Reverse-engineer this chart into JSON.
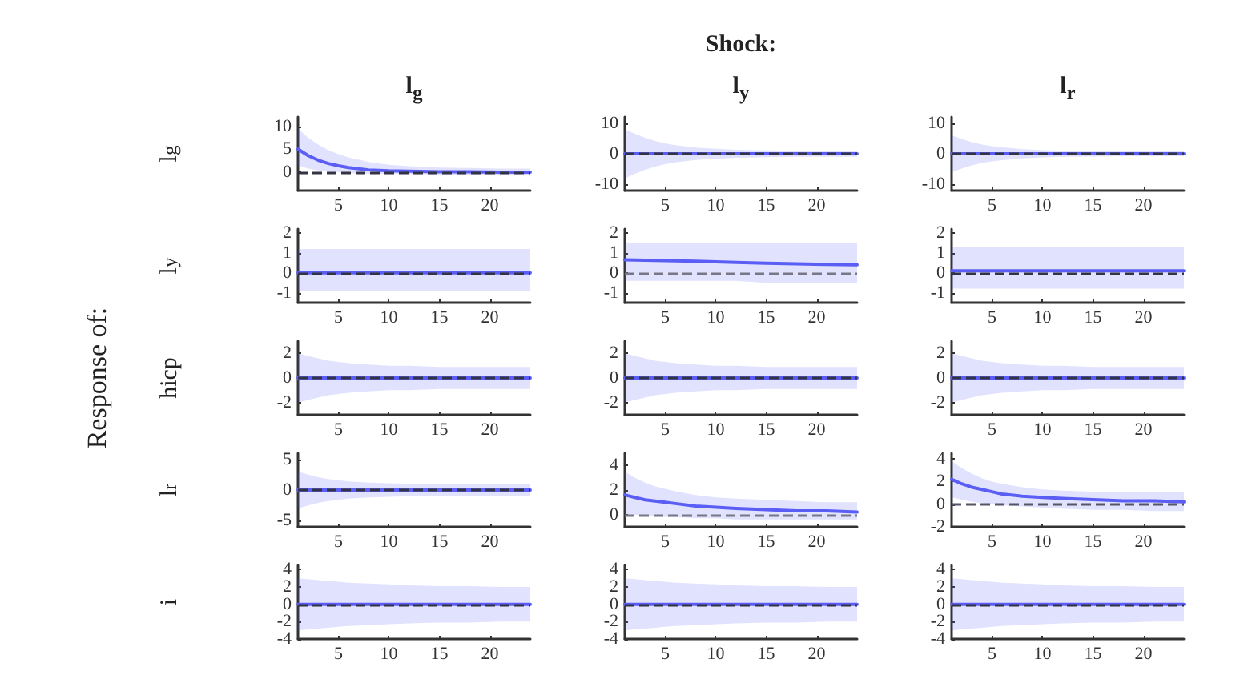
{
  "chart_data": [
    {
      "type": "line",
      "title": "l$_{g}$",
      "ylabel": "l$_{g}$",
      "x": [
        1,
        2,
        3,
        4,
        5,
        6,
        8,
        10,
        12,
        15,
        18,
        21,
        24
      ],
      "xlim": [
        1,
        24
      ],
      "xticks": [
        5,
        10,
        15,
        20
      ],
      "ylim": [
        -4,
        12
      ],
      "yticks": [
        0,
        5,
        10
      ],
      "grid": false,
      "ref_lines": [
        {
          "axis": "y",
          "value": 0,
          "color": "#333344",
          "line_style": "dashed"
        }
      ],
      "series": [
        {
          "color": "#5b5ef5",
          "values": [
            5,
            3.6,
            2.6,
            1.9,
            1.4,
            1,
            0.5,
            0.3,
            0.2,
            0.1,
            0.1,
            0,
            0
          ],
          "upper": [
            9.5,
            7.5,
            6,
            4.8,
            3.9,
            3.2,
            2.2,
            1.6,
            1.3,
            1,
            0.9,
            0.8,
            0.8
          ],
          "lower": [
            1.5,
            0.8,
            0.4,
            0.1,
            0,
            -0.2,
            -0.3,
            -0.4,
            -0.4,
            -0.5,
            -0.5,
            -0.5,
            -0.5
          ]
        }
      ]
    },
    {
      "type": "line",
      "title": "l$_{y}$",
      "annotations": [
        "Shock:"
      ],
      "x": [
        1,
        2,
        3,
        4,
        5,
        6,
        8,
        10,
        12,
        15,
        18,
        21,
        24
      ],
      "xlim": [
        1,
        24
      ],
      "xticks": [
        5,
        10,
        15,
        20
      ],
      "ylim": [
        -12,
        12
      ],
      "yticks": [
        -10,
        0,
        10
      ],
      "grid": false,
      "ref_lines": [
        {
          "axis": "y",
          "value": 0,
          "color": "#333344",
          "line_style": "dashed"
        }
      ],
      "series": [
        {
          "color": "#5b5ef5",
          "values": [
            0,
            0,
            0,
            0,
            0,
            0,
            0,
            0,
            0,
            0,
            0,
            0,
            0
          ],
          "upper": [
            8,
            6.5,
            5.2,
            4.2,
            3.4,
            2.8,
            2,
            1.6,
            1.3,
            1.1,
            1,
            1,
            1
          ],
          "lower": [
            -8,
            -6.5,
            -5.2,
            -4.2,
            -3.4,
            -2.8,
            -2,
            -1.6,
            -1.3,
            -1.1,
            -1,
            -1,
            -1
          ]
        }
      ]
    },
    {
      "type": "line",
      "title": "l$_{r}$",
      "x": [
        1,
        2,
        3,
        4,
        5,
        6,
        8,
        10,
        12,
        15,
        18,
        21,
        24
      ],
      "xlim": [
        1,
        24
      ],
      "xticks": [
        5,
        10,
        15,
        20
      ],
      "ylim": [
        -12,
        12
      ],
      "yticks": [
        -10,
        0,
        10
      ],
      "grid": false,
      "ref_lines": [
        {
          "axis": "y",
          "value": 0,
          "color": "#333344",
          "line_style": "dashed"
        }
      ],
      "series": [
        {
          "color": "#5b5ef5",
          "values": [
            0,
            0,
            0,
            0,
            0,
            0,
            0,
            0,
            0,
            0,
            0,
            0,
            0
          ],
          "upper": [
            6,
            4.8,
            3.8,
            3,
            2.5,
            2.1,
            1.5,
            1.2,
            1,
            0.9,
            0.8,
            0.8,
            0.8
          ],
          "lower": [
            -6,
            -4.8,
            -3.8,
            -3,
            -2.5,
            -2.1,
            -1.5,
            -1.2,
            -1,
            -0.9,
            -0.8,
            -0.8,
            -0.8
          ]
        }
      ]
    },
    {
      "type": "line",
      "ylabel": "l$_{y}$",
      "x": [
        1,
        2,
        3,
        4,
        5,
        6,
        8,
        10,
        12,
        15,
        18,
        21,
        24
      ],
      "xlim": [
        1,
        24
      ],
      "xticks": [
        5,
        10,
        15,
        20
      ],
      "ylim": [
        -1.5,
        2.2
      ],
      "yticks": [
        -1,
        0,
        1,
        2
      ],
      "grid": false,
      "ref_lines": [
        {
          "axis": "y",
          "value": 0,
          "color": "#333344",
          "line_style": "dashed"
        }
      ],
      "series": [
        {
          "color": "#5b5ef5",
          "values": [
            0,
            0,
            0,
            0,
            0,
            0,
            0,
            0,
            0,
            0,
            0,
            0,
            0
          ],
          "upper": [
            1.2,
            1.2,
            1.2,
            1.2,
            1.2,
            1.2,
            1.2,
            1.2,
            1.2,
            1.2,
            1.2,
            1.2,
            1.2
          ],
          "lower": [
            -0.9,
            -0.9,
            -0.9,
            -0.9,
            -0.9,
            -0.9,
            -0.9,
            -0.9,
            -0.9,
            -0.9,
            -0.9,
            -0.9,
            -0.9
          ]
        }
      ]
    },
    {
      "type": "line",
      "x": [
        1,
        2,
        3,
        4,
        5,
        6,
        8,
        10,
        12,
        15,
        18,
        21,
        24
      ],
      "xlim": [
        1,
        24
      ],
      "xticks": [
        5,
        10,
        15,
        20
      ],
      "ylim": [
        -1.5,
        2.2
      ],
      "yticks": [
        -1,
        0,
        1,
        2
      ],
      "grid": false,
      "ref_lines": [
        {
          "axis": "y",
          "value": 0,
          "color": "#777788",
          "line_style": "dashed"
        }
      ],
      "series": [
        {
          "color": "#5b5ef5",
          "values": [
            0.65,
            0.64,
            0.63,
            0.62,
            0.61,
            0.6,
            0.58,
            0.55,
            0.52,
            0.48,
            0.45,
            0.42,
            0.4
          ],
          "upper": [
            1.5,
            1.5,
            1.5,
            1.5,
            1.5,
            1.5,
            1.5,
            1.5,
            1.5,
            1.5,
            1.5,
            1.5,
            1.5
          ],
          "lower": [
            -0.4,
            -0.4,
            -0.4,
            -0.4,
            -0.4,
            -0.4,
            -0.4,
            -0.4,
            -0.4,
            -0.5,
            -0.5,
            -0.5,
            -0.5
          ]
        }
      ]
    },
    {
      "type": "line",
      "x": [
        1,
        2,
        3,
        4,
        5,
        6,
        8,
        10,
        12,
        15,
        18,
        21,
        24
      ],
      "xlim": [
        1,
        24
      ],
      "xticks": [
        5,
        10,
        15,
        20
      ],
      "ylim": [
        -1.5,
        2.2
      ],
      "yticks": [
        -1,
        0,
        1,
        2
      ],
      "grid": false,
      "ref_lines": [
        {
          "axis": "y",
          "value": 0,
          "color": "#333344",
          "line_style": "dashed"
        }
      ],
      "series": [
        {
          "color": "#5b5ef5",
          "values": [
            0.1,
            0.1,
            0.1,
            0.1,
            0.1,
            0.1,
            0.1,
            0.1,
            0.1,
            0.1,
            0.1,
            0.1,
            0.1
          ],
          "upper": [
            1.3,
            1.3,
            1.3,
            1.3,
            1.3,
            1.3,
            1.3,
            1.3,
            1.3,
            1.3,
            1.3,
            1.3,
            1.3
          ],
          "lower": [
            -0.8,
            -0.8,
            -0.8,
            -0.8,
            -0.8,
            -0.8,
            -0.8,
            -0.8,
            -0.8,
            -0.8,
            -0.8,
            -0.8,
            -0.8
          ]
        }
      ]
    },
    {
      "type": "line",
      "ylabel": "hicp",
      "annotations": [
        "Response of:"
      ],
      "x": [
        1,
        2,
        3,
        4,
        5,
        6,
        8,
        10,
        12,
        15,
        18,
        21,
        24
      ],
      "xlim": [
        1,
        24
      ],
      "xticks": [
        5,
        10,
        15,
        20
      ],
      "ylim": [
        -3,
        3
      ],
      "yticks": [
        -2,
        0,
        2
      ],
      "grid": false,
      "ref_lines": [
        {
          "axis": "y",
          "value": 0,
          "color": "#333344",
          "line_style": "dashed"
        }
      ],
      "series": [
        {
          "color": "#5b5ef5",
          "values": [
            0,
            0,
            0,
            0,
            0,
            0,
            0,
            0,
            0,
            0,
            0,
            0,
            0
          ],
          "upper": [
            2,
            1.8,
            1.6,
            1.4,
            1.3,
            1.2,
            1.1,
            1,
            1,
            0.9,
            0.9,
            0.9,
            0.9
          ],
          "lower": [
            -2,
            -1.8,
            -1.6,
            -1.4,
            -1.3,
            -1.2,
            -1.1,
            -1,
            -1,
            -0.9,
            -0.9,
            -0.9,
            -0.9
          ]
        }
      ]
    },
    {
      "type": "line",
      "x": [
        1,
        2,
        3,
        4,
        5,
        6,
        8,
        10,
        12,
        15,
        18,
        21,
        24
      ],
      "xlim": [
        1,
        24
      ],
      "xticks": [
        5,
        10,
        15,
        20
      ],
      "ylim": [
        -3,
        3
      ],
      "yticks": [
        -2,
        0,
        2
      ],
      "grid": false,
      "ref_lines": [
        {
          "axis": "y",
          "value": 0,
          "color": "#333344",
          "line_style": "dashed"
        }
      ],
      "series": [
        {
          "color": "#5b5ef5",
          "values": [
            0,
            0,
            0,
            0,
            0,
            0,
            0,
            0,
            0,
            0,
            0,
            0,
            0
          ],
          "upper": [
            2,
            1.8,
            1.6,
            1.4,
            1.3,
            1.2,
            1.1,
            1,
            1,
            0.9,
            0.9,
            0.9,
            0.9
          ],
          "lower": [
            -2,
            -1.8,
            -1.6,
            -1.4,
            -1.3,
            -1.2,
            -1.1,
            -1,
            -1,
            -0.9,
            -0.9,
            -0.9,
            -0.9
          ]
        }
      ]
    },
    {
      "type": "line",
      "x": [
        1,
        2,
        3,
        4,
        5,
        6,
        8,
        10,
        12,
        15,
        18,
        21,
        24
      ],
      "xlim": [
        1,
        24
      ],
      "xticks": [
        5,
        10,
        15,
        20
      ],
      "ylim": [
        -3,
        3
      ],
      "yticks": [
        -2,
        0,
        2
      ],
      "grid": false,
      "ref_lines": [
        {
          "axis": "y",
          "value": 0,
          "color": "#333344",
          "line_style": "dashed"
        }
      ],
      "series": [
        {
          "color": "#5b5ef5",
          "values": [
            0,
            0,
            0,
            0,
            0,
            0,
            0,
            0,
            0,
            0,
            0,
            0,
            0
          ],
          "upper": [
            2,
            1.8,
            1.6,
            1.4,
            1.3,
            1.2,
            1.1,
            1,
            1,
            0.9,
            0.9,
            0.9,
            0.9
          ],
          "lower": [
            -2,
            -1.8,
            -1.6,
            -1.4,
            -1.3,
            -1.2,
            -1.1,
            -1,
            -1,
            -0.9,
            -0.9,
            -0.9,
            -0.9
          ]
        }
      ]
    },
    {
      "type": "line",
      "ylabel": "l$_{r}$",
      "x": [
        1,
        2,
        3,
        4,
        5,
        6,
        8,
        10,
        12,
        15,
        18,
        21,
        24
      ],
      "xlim": [
        1,
        24
      ],
      "xticks": [
        5,
        10,
        15,
        20
      ],
      "ylim": [
        -6,
        6
      ],
      "yticks": [
        -5,
        0,
        5
      ],
      "grid": false,
      "ref_lines": [
        {
          "axis": "y",
          "value": 0,
          "color": "#333344",
          "line_style": "dashed"
        }
      ],
      "series": [
        {
          "color": "#5b5ef5",
          "values": [
            0,
            0,
            0,
            0,
            0,
            0,
            0,
            0,
            0,
            0,
            0,
            0,
            0
          ],
          "upper": [
            3,
            2.5,
            2.1,
            1.8,
            1.6,
            1.4,
            1.2,
            1.1,
            1,
            1,
            1,
            1,
            1
          ],
          "lower": [
            -3,
            -2.5,
            -2.1,
            -1.8,
            -1.6,
            -1.4,
            -1.2,
            -1.1,
            -1,
            -1,
            -1,
            -1,
            -1
          ]
        }
      ]
    },
    {
      "type": "line",
      "x": [
        1,
        2,
        3,
        4,
        5,
        6,
        8,
        10,
        12,
        15,
        18,
        21,
        24
      ],
      "xlim": [
        1,
        24
      ],
      "xticks": [
        5,
        10,
        15,
        20
      ],
      "ylim": [
        -1,
        5
      ],
      "yticks": [
        0,
        2,
        4
      ],
      "grid": false,
      "ref_lines": [
        {
          "axis": "y",
          "value": 0,
          "color": "#777788",
          "line_style": "dashed"
        }
      ],
      "series": [
        {
          "color": "#5b5ef5",
          "values": [
            1.6,
            1.4,
            1.2,
            1.1,
            1,
            0.9,
            0.7,
            0.6,
            0.5,
            0.4,
            0.3,
            0.3,
            0.2
          ],
          "upper": [
            3.5,
            3,
            2.6,
            2.3,
            2.1,
            1.9,
            1.6,
            1.4,
            1.3,
            1.2,
            1.1,
            1,
            1
          ],
          "lower": [
            0,
            0,
            -0.1,
            -0.1,
            -0.2,
            -0.2,
            -0.3,
            -0.3,
            -0.4,
            -0.4,
            -0.4,
            -0.4,
            -0.4
          ]
        }
      ]
    },
    {
      "type": "line",
      "x": [
        1,
        2,
        3,
        4,
        5,
        6,
        8,
        10,
        12,
        15,
        18,
        21,
        24
      ],
      "xlim": [
        1,
        24
      ],
      "xticks": [
        5,
        10,
        15,
        20
      ],
      "ylim": [
        -2,
        4.5
      ],
      "yticks": [
        -2,
        0,
        2,
        4
      ],
      "grid": false,
      "ref_lines": [
        {
          "axis": "y",
          "value": 0,
          "color": "#555566",
          "line_style": "dashed"
        }
      ],
      "series": [
        {
          "color": "#5b5ef5",
          "values": [
            2.2,
            1.8,
            1.5,
            1.3,
            1.1,
            0.9,
            0.7,
            0.6,
            0.5,
            0.4,
            0.3,
            0.3,
            0.2
          ],
          "upper": [
            3.8,
            3.2,
            2.7,
            2.3,
            2,
            1.8,
            1.5,
            1.3,
            1.2,
            1.1,
            1.1,
            1.1,
            1.1
          ],
          "lower": [
            0.6,
            0.4,
            0.2,
            0.1,
            0,
            -0.1,
            -0.2,
            -0.3,
            -0.4,
            -0.5,
            -0.5,
            -0.6,
            -0.6
          ]
        }
      ]
    },
    {
      "type": "line",
      "ylabel": "i",
      "x": [
        1,
        2,
        3,
        4,
        5,
        6,
        8,
        10,
        12,
        15,
        18,
        21,
        24
      ],
      "xlim": [
        1,
        24
      ],
      "xticks": [
        5,
        10,
        15,
        20
      ],
      "ylim": [
        -4,
        4.5
      ],
      "yticks": [
        -4,
        -2,
        0,
        2,
        4
      ],
      "grid": false,
      "ref_lines": [
        {
          "axis": "y",
          "value": 0,
          "color": "#333344",
          "line_style": "dashed"
        }
      ],
      "series": [
        {
          "color": "#5b5ef5",
          "values": [
            0,
            0,
            0,
            0,
            0,
            0,
            0,
            0,
            0,
            0,
            0,
            0,
            0
          ],
          "upper": [
            3,
            2.9,
            2.8,
            2.7,
            2.6,
            2.5,
            2.4,
            2.3,
            2.2,
            2.1,
            2.1,
            2,
            2
          ],
          "lower": [
            -3,
            -2.9,
            -2.8,
            -2.7,
            -2.6,
            -2.5,
            -2.4,
            -2.3,
            -2.2,
            -2.1,
            -2.1,
            -2,
            -2
          ]
        }
      ]
    },
    {
      "type": "line",
      "x": [
        1,
        2,
        3,
        4,
        5,
        6,
        8,
        10,
        12,
        15,
        18,
        21,
        24
      ],
      "xlim": [
        1,
        24
      ],
      "xticks": [
        5,
        10,
        15,
        20
      ],
      "ylim": [
        -4,
        4.5
      ],
      "yticks": [
        -4,
        -2,
        0,
        2,
        4
      ],
      "grid": false,
      "ref_lines": [
        {
          "axis": "y",
          "value": 0,
          "color": "#333344",
          "line_style": "dashed"
        }
      ],
      "series": [
        {
          "color": "#5b5ef5",
          "values": [
            0,
            0,
            0,
            0,
            0,
            0,
            0,
            0,
            0,
            0,
            0,
            0,
            0
          ],
          "upper": [
            3,
            2.9,
            2.8,
            2.7,
            2.6,
            2.5,
            2.4,
            2.3,
            2.2,
            2.1,
            2.1,
            2,
            2
          ],
          "lower": [
            -3,
            -2.9,
            -2.8,
            -2.7,
            -2.6,
            -2.5,
            -2.4,
            -2.3,
            -2.2,
            -2.1,
            -2.1,
            -2,
            -2
          ]
        }
      ]
    },
    {
      "type": "line",
      "x": [
        1,
        2,
        3,
        4,
        5,
        6,
        8,
        10,
        12,
        15,
        18,
        21,
        24
      ],
      "xlim": [
        1,
        24
      ],
      "xticks": [
        5,
        10,
        15,
        20
      ],
      "ylim": [
        -4,
        4.5
      ],
      "yticks": [
        -4,
        -2,
        0,
        2,
        4
      ],
      "grid": false,
      "ref_lines": [
        {
          "axis": "y",
          "value": 0,
          "color": "#333344",
          "line_style": "dashed"
        }
      ],
      "series": [
        {
          "color": "#5b5ef5",
          "values": [
            0,
            0,
            0,
            0,
            0,
            0,
            0,
            0,
            0,
            0,
            0,
            0,
            0
          ],
          "upper": [
            3,
            2.9,
            2.8,
            2.7,
            2.6,
            2.5,
            2.4,
            2.3,
            2.2,
            2.1,
            2.1,
            2,
            2
          ],
          "lower": [
            -3,
            -2.9,
            -2.8,
            -2.7,
            -2.6,
            -2.5,
            -2.4,
            -2.3,
            -2.2,
            -2.1,
            -2.1,
            -2,
            -2
          ]
        }
      ]
    }
  ]
}
